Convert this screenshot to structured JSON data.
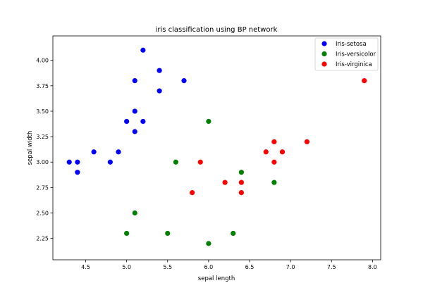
{
  "chart_data": {
    "type": "scatter",
    "title": "iris classification using BP network",
    "xlabel": "sepal length",
    "ylabel": "sepal width",
    "xlim": [
      4.1,
      8.1
    ],
    "ylim": [
      2.04,
      4.24
    ],
    "xticks": [
      "4.5",
      "5.0",
      "5.5",
      "6.0",
      "6.5",
      "7.0",
      "7.5",
      "8.0"
    ],
    "yticks": [
      "2.25",
      "2.50",
      "2.75",
      "3.00",
      "3.25",
      "3.50",
      "3.75",
      "4.00"
    ],
    "grid": false,
    "legend_position": "top-right",
    "series": [
      {
        "name": "Iris-setosa",
        "color": "#0000ff",
        "points": [
          [
            4.3,
            3.0
          ],
          [
            4.4,
            3.0
          ],
          [
            4.4,
            2.9
          ],
          [
            4.6,
            3.1
          ],
          [
            4.8,
            3.0
          ],
          [
            4.9,
            3.1
          ],
          [
            5.0,
            3.4
          ],
          [
            5.1,
            3.5
          ],
          [
            5.1,
            3.3
          ],
          [
            5.1,
            3.8
          ],
          [
            5.2,
            4.1
          ],
          [
            5.2,
            3.4
          ],
          [
            5.4,
            3.9
          ],
          [
            5.4,
            3.7
          ],
          [
            5.7,
            3.8
          ]
        ]
      },
      {
        "name": "Iris-versicolor",
        "color": "#008000",
        "points": [
          [
            5.0,
            2.3
          ],
          [
            5.1,
            2.5
          ],
          [
            5.5,
            2.3
          ],
          [
            5.6,
            3.0
          ],
          [
            6.0,
            3.4
          ],
          [
            6.0,
            2.2
          ],
          [
            6.3,
            2.3
          ],
          [
            6.4,
            2.9
          ],
          [
            6.8,
            2.8
          ]
        ]
      },
      {
        "name": "Iris-virginica",
        "color": "#ff0000",
        "points": [
          [
            5.8,
            2.7
          ],
          [
            5.9,
            3.0
          ],
          [
            6.2,
            2.8
          ],
          [
            6.4,
            2.8
          ],
          [
            6.4,
            2.7
          ],
          [
            6.7,
            3.1
          ],
          [
            6.8,
            3.2
          ],
          [
            6.8,
            3.0
          ],
          [
            6.9,
            3.1
          ],
          [
            7.2,
            3.2
          ],
          [
            7.9,
            3.8
          ]
        ]
      }
    ]
  }
}
